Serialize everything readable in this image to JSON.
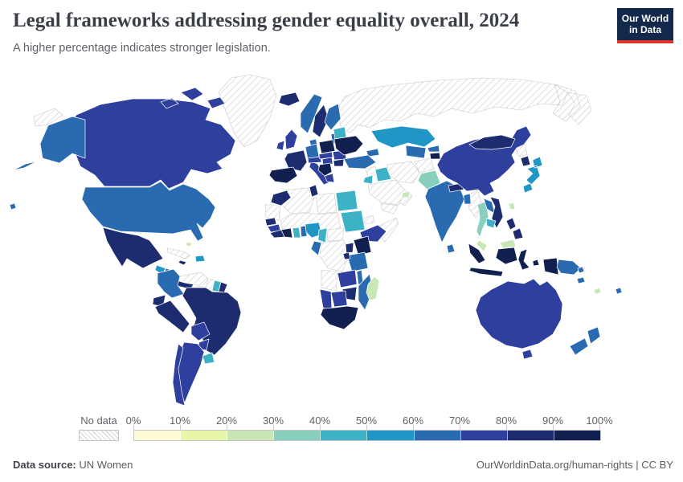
{
  "header": {
    "title": "Legal frameworks addressing gender equality overall, 2024",
    "subtitle": "A higher percentage indicates stronger legislation."
  },
  "logo": {
    "line1": "Our World",
    "line2": "in Data"
  },
  "legend": {
    "no_data_label": "No data",
    "tick_labels": [
      "0%",
      "10%",
      "20%",
      "30%",
      "40%",
      "50%",
      "60%",
      "70%",
      "80%",
      "90%",
      "100%"
    ],
    "colors": [
      "#fdfcd4",
      "#e8f6a9",
      "#c9e7b5",
      "#88cfbe",
      "#3db2c6",
      "#1f96c5",
      "#2a6ab0",
      "#2e3f9e",
      "#1d2b6f",
      "#12204f"
    ],
    "hatch_color": "#d2d2d2"
  },
  "map": {
    "regions": {
      "greenland": {
        "label": "Greenland",
        "bucket": "no_data"
      },
      "russia": {
        "label": "Russia",
        "bucket": "no_data"
      },
      "cuba": {
        "label": "Cuba",
        "bucket": "no_data"
      },
      "venezuela": {
        "label": "Venezuela",
        "bucket": "no_data"
      },
      "guyana": {
        "label": "Guyana",
        "bucket": "no_data"
      },
      "algeria": {
        "label": "Algeria",
        "bucket": "no_data"
      },
      "libya": {
        "label": "Libya",
        "bucket": "no_data"
      },
      "mauritania": {
        "label": "Mauritania",
        "bucket": "no_data"
      },
      "mali-niger-chad": {
        "label": "Mali, Niger & Chad",
        "bucket": "no_data"
      },
      "eritrea": {
        "label": "Eritrea",
        "bucket": "no_data"
      },
      "somalia": {
        "label": "Somalia",
        "bucket": "no_data"
      },
      "central-african-republic": {
        "label": "Central African Republic",
        "bucket": "no_data"
      },
      "drc": {
        "label": "Democratic Republic of Congo",
        "bucket": "no_data"
      },
      "angola": {
        "label": "Angola",
        "bucket": "no_data"
      },
      "syria": {
        "label": "Syria",
        "bucket": "no_data"
      },
      "saudi-arabia": {
        "label": "Saudi Arabia",
        "bucket": "no_data"
      },
      "yemen": {
        "label": "Yemen",
        "bucket": "no_data"
      },
      "oman": {
        "label": "Oman",
        "bucket": "no_data"
      },
      "iran": {
        "label": "Iran",
        "bucket": "no_data"
      },
      "afghanistan": {
        "label": "Afghanistan",
        "bucket": "no_data"
      },
      "myanmar": {
        "label": "Myanmar",
        "bucket": "no_data"
      },
      "north-korea": {
        "label": "North Korea",
        "bucket": "no_data"
      },
      "canada": {
        "label": "Canada",
        "bucket": 7
      },
      "usa": {
        "label": "United States",
        "bucket": 6
      },
      "mexico": {
        "label": "Mexico",
        "bucket": 8
      },
      "guatemala": {
        "label": "Guatemala",
        "bucket": 5
      },
      "nicaragua": {
        "label": "Nicaragua",
        "bucket": 6
      },
      "panama": {
        "label": "Panama",
        "bucket": 8
      },
      "dominican-republic": {
        "label": "Dominican Republic",
        "bucket": 5
      },
      "jamaica": {
        "label": "Jamaica",
        "bucket": 8
      },
      "bahamas": {
        "label": "Bahamas",
        "bucket": 2
      },
      "colombia": {
        "label": "Colombia",
        "bucket": 6
      },
      "suriname": {
        "label": "Suriname",
        "bucket": 4
      },
      "french-guiana": {
        "label": "French Guiana",
        "bucket": 8
      },
      "ecuador": {
        "label": "Ecuador",
        "bucket": 8
      },
      "peru": {
        "label": "Peru",
        "bucket": 8
      },
      "brazil": {
        "label": "Brazil",
        "bucket": 8
      },
      "bolivia": {
        "label": "Bolivia",
        "bucket": 7
      },
      "paraguay": {
        "label": "Paraguay",
        "bucket": 7
      },
      "uruguay": {
        "label": "Uruguay",
        "bucket": 4
      },
      "argentina": {
        "label": "Argentina",
        "bucket": 7
      },
      "chile": {
        "label": "Chile",
        "bucket": 7
      },
      "iceland": {
        "label": "Iceland",
        "bucket": 8
      },
      "norway": {
        "label": "Norway",
        "bucket": 6
      },
      "sweden": {
        "label": "Sweden",
        "bucket": 8
      },
      "finland": {
        "label": "Finland",
        "bucket": 6
      },
      "baltic-states": {
        "label": "Baltic states",
        "bucket": 6
      },
      "uk": {
        "label": "United Kingdom",
        "bucket": 7
      },
      "ireland": {
        "label": "Ireland",
        "bucket": 7
      },
      "denmark": {
        "label": "Denmark",
        "bucket": 6
      },
      "germany": {
        "label": "Germany",
        "bucket": 6
      },
      "france": {
        "label": "France",
        "bucket": 8
      },
      "spain-portugal": {
        "label": "Spain & Portugal",
        "bucket": 9
      },
      "italy": {
        "label": "Italy",
        "bucket": 7
      },
      "austria-switzerland": {
        "label": "Austria & Switzerland",
        "bucket": 7
      },
      "poland": {
        "label": "Poland",
        "bucket": 9
      },
      "czechia-slovakia": {
        "label": "Czechia & Slovakia",
        "bucket": 7
      },
      "hungary": {
        "label": "Hungary",
        "bucket": 7
      },
      "serbia-balkans": {
        "label": "Western Balkans",
        "bucket": 9
      },
      "greece": {
        "label": "Greece",
        "bucket": 7
      },
      "romania": {
        "label": "Romania",
        "bucket": 7
      },
      "bulgaria": {
        "label": "Bulgaria",
        "bucket": 8
      },
      "belarus": {
        "label": "Belarus",
        "bucket": 4
      },
      "ukraine": {
        "label": "Ukraine",
        "bucket": 9
      },
      "kazakhstan": {
        "label": "Kazakhstan",
        "bucket": 5
      },
      "caucasus": {
        "label": "Caucasus",
        "bucket": 6
      },
      "uzbekistan-turkmenistan": {
        "label": "Uzbekistan & Turkmenistan",
        "bucket": 6
      },
      "kyrgyzstan": {
        "label": "Kyrgyzstan",
        "bucket": 6
      },
      "tajikistan": {
        "label": "Tajikistan",
        "bucket": 9
      },
      "turkey": {
        "label": "Turkey",
        "bucket": 6
      },
      "jordan": {
        "label": "Jordan",
        "bucket": 4
      },
      "iraq": {
        "label": "Iraq",
        "bucket": 4
      },
      "uae": {
        "label": "United Arab Emirates",
        "bucket": 2
      },
      "pakistan": {
        "label": "Pakistan",
        "bucket": 3
      },
      "india": {
        "label": "India",
        "bucket": 6
      },
      "nepal": {
        "label": "Nepal",
        "bucket": 8
      },
      "bangladesh": {
        "label": "Bangladesh",
        "bucket": 6
      },
      "sri-lanka": {
        "label": "Sri Lanka",
        "bucket": 6
      },
      "thailand": {
        "label": "Thailand",
        "bucket": 3
      },
      "laos": {
        "label": "Laos",
        "bucket": 6
      },
      "vietnam": {
        "label": "Vietnam",
        "bucket": 8
      },
      "cambodia": {
        "label": "Cambodia",
        "bucket": 4
      },
      "malaysia": {
        "label": "Malaysia",
        "bucket": 2
      },
      "china": {
        "label": "China",
        "bucket": 7
      },
      "mongolia": {
        "label": "Mongolia",
        "bucket": 8
      },
      "south-korea": {
        "label": "South Korea",
        "bucket": 8
      },
      "japan": {
        "label": "Japan",
        "bucket": 5
      },
      "taiwan": {
        "label": "Taiwan",
        "bucket": 2
      },
      "philippines": {
        "label": "Philippines",
        "bucket": 8
      },
      "indonesia": {
        "label": "Indonesia",
        "bucket": 9
      },
      "papua-new-guinea": {
        "label": "Papua New Guinea",
        "bucket": 6
      },
      "australia": {
        "label": "Australia",
        "bucket": 7
      },
      "new-zealand": {
        "label": "New Zealand",
        "bucket": 6
      },
      "fiji": {
        "label": "Fiji",
        "bucket": 6
      },
      "solomon-islands": {
        "label": "Solomon Islands",
        "bucket": 6
      },
      "new-caledonia": {
        "label": "New Caledonia",
        "bucket": 2
      },
      "morocco": {
        "label": "Morocco",
        "bucket": 8
      },
      "tunisia": {
        "label": "Tunisia",
        "bucket": 8
      },
      "egypt": {
        "label": "Egypt",
        "bucket": 4
      },
      "sudan": {
        "label": "Sudan",
        "bucket": 4
      },
      "ethiopia": {
        "label": "Ethiopia",
        "bucket": 7
      },
      "senegal": {
        "label": "Senegal",
        "bucket": 8
      },
      "guinea": {
        "label": "Guinea",
        "bucket": 7
      },
      "liberia": {
        "label": "Sierra Leone & Liberia",
        "bucket": 8
      },
      "cote-divoire": {
        "label": "Côte d'Ivoire",
        "bucket": 9
      },
      "ghana": {
        "label": "Ghana",
        "bucket": 4
      },
      "togo-benin": {
        "label": "Togo & Benin",
        "bucket": 6
      },
      "nigeria": {
        "label": "Nigeria",
        "bucket": 5
      },
      "cameroon": {
        "label": "Cameroon",
        "bucket": 4
      },
      "congo-gabon": {
        "label": "Congo & Gabon",
        "bucket": 6
      },
      "uganda": {
        "label": "Uganda",
        "bucket": 8
      },
      "kenya": {
        "label": "Kenya",
        "bucket": 9
      },
      "tanzania": {
        "label": "Tanzania",
        "bucket": 6
      },
      "rwanda-burundi": {
        "label": "Rwanda & Burundi",
        "bucket": 8
      },
      "zambia": {
        "label": "Zambia",
        "bucket": 7
      },
      "malawi": {
        "label": "Malawi",
        "bucket": 6
      },
      "mozambique": {
        "label": "Mozambique",
        "bucket": 6
      },
      "zimbabwe": {
        "label": "Zimbabwe",
        "bucket": 8
      },
      "botswana": {
        "label": "Botswana",
        "bucket": 7
      },
      "namibia": {
        "label": "Namibia",
        "bucket": 7
      },
      "south-africa": {
        "label": "South Africa",
        "bucket": 9
      },
      "madagascar": {
        "label": "Madagascar",
        "bucket": 2
      }
    }
  },
  "footer": {
    "source_label": "Data source:",
    "source_value": "UN Women",
    "link": "OurWorldinData.org/human-rights",
    "separator": "|",
    "license": "CC BY"
  }
}
